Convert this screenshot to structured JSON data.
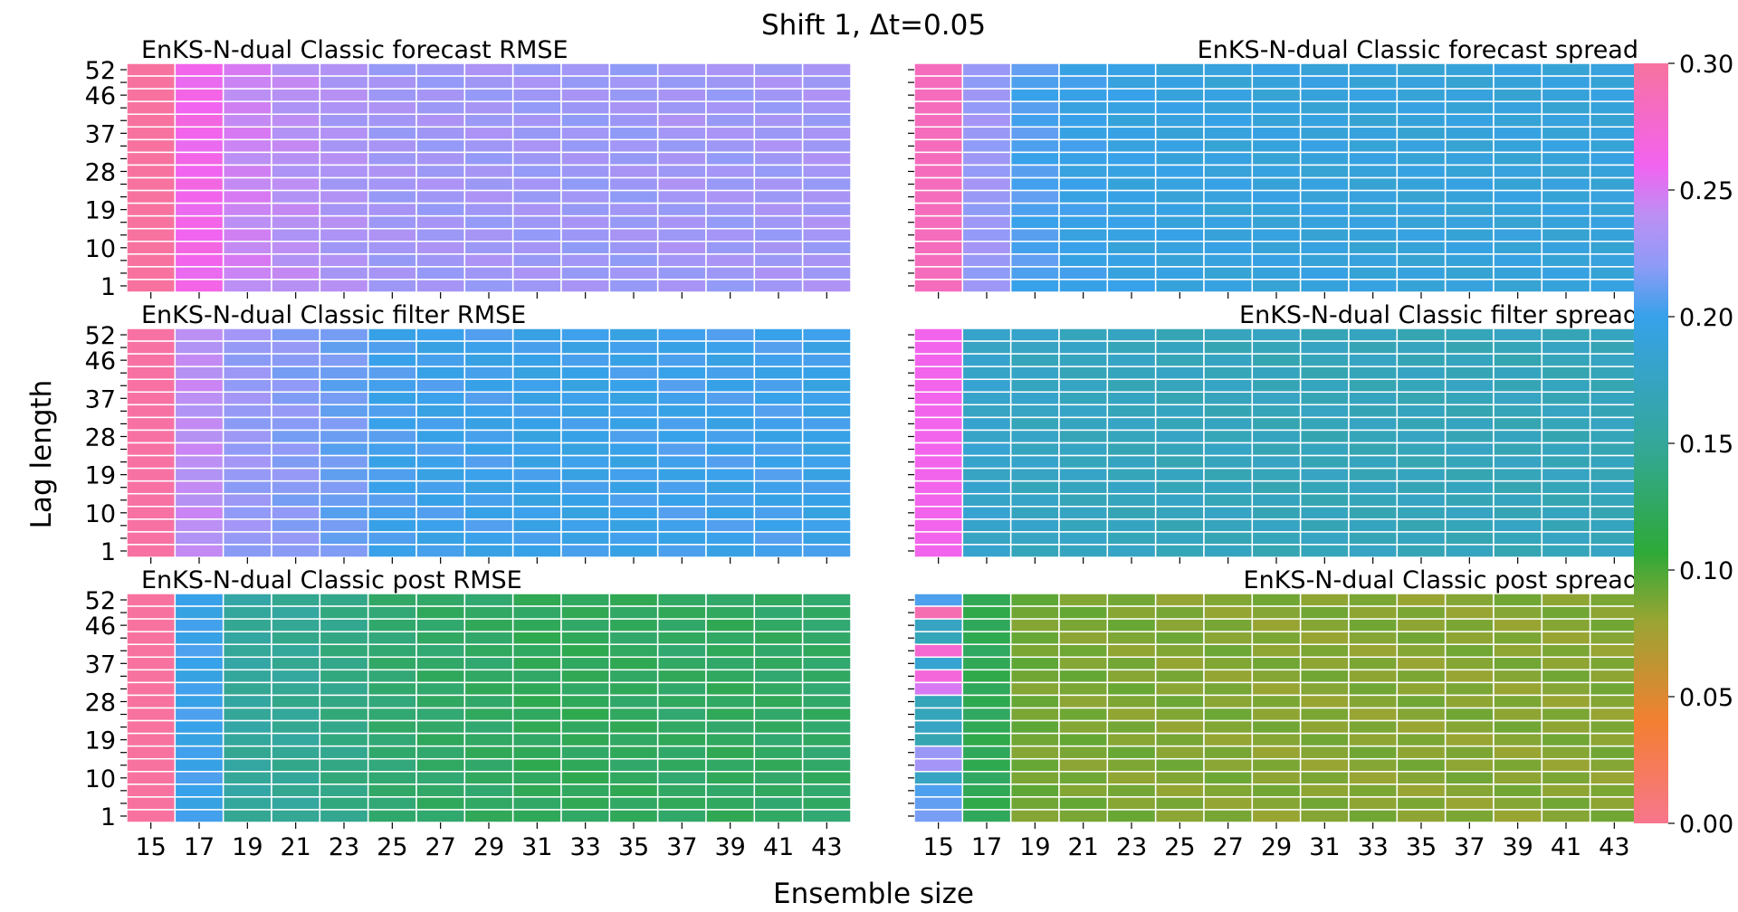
{
  "figure": {
    "title": "Shift 1, Δt=0.05",
    "xlabel": "Ensemble size",
    "ylabel": "Lag length"
  },
  "colorbar": {
    "min": 0.0,
    "max": 0.3,
    "ticks": [
      "0.00",
      "0.05",
      "0.10",
      "0.15",
      "0.20",
      "0.25",
      "0.30"
    ],
    "colormap": [
      [
        0.0,
        "#f8768d"
      ],
      [
        0.04,
        "#f37f32"
      ],
      [
        0.08,
        "#99a533"
      ],
      [
        0.107,
        "#2ea938"
      ],
      [
        0.15,
        "#34a79a"
      ],
      [
        0.2,
        "#37a1ea"
      ],
      [
        0.22,
        "#8e9bf7"
      ],
      [
        0.24,
        "#bc8ff4"
      ],
      [
        0.26,
        "#f263ef"
      ],
      [
        0.3,
        "#f7729e"
      ]
    ]
  },
  "chart_data": [
    {
      "type": "heatmap",
      "title": "EnKS-N-dual Classic forecast RMSE",
      "x": [
        15,
        17,
        19,
        21,
        23,
        25,
        27,
        29,
        31,
        33,
        35,
        37,
        39,
        41,
        43
      ],
      "y": [
        52,
        49,
        46,
        43,
        40,
        37,
        34,
        31,
        28,
        25,
        22,
        19,
        16,
        13,
        10,
        7,
        4,
        1
      ],
      "xticks": [
        "15",
        "17",
        "19",
        "21",
        "23",
        "25",
        "27",
        "29",
        "31",
        "33",
        "35",
        "37",
        "39",
        "41",
        "43"
      ],
      "yticks": [
        "52",
        "46",
        "37",
        "28",
        "19",
        "10",
        "1"
      ],
      "column_values": [
        0.3,
        0.262,
        0.245,
        0.238,
        0.233,
        0.229,
        0.228,
        0.228,
        0.227,
        0.226,
        0.226,
        0.229,
        0.227,
        0.228,
        0.229
      ]
    },
    {
      "type": "heatmap",
      "title": "EnKS-N-dual Classic forecast spread",
      "x": [
        15,
        17,
        19,
        21,
        23,
        25,
        27,
        29,
        31,
        33,
        35,
        37,
        39,
        41,
        43
      ],
      "y": [
        52,
        49,
        46,
        43,
        40,
        37,
        34,
        31,
        28,
        25,
        22,
        19,
        16,
        13,
        10,
        7,
        4,
        1
      ],
      "xticks": [
        "15",
        "17",
        "19",
        "21",
        "23",
        "25",
        "27",
        "29",
        "31",
        "33",
        "35",
        "37",
        "39",
        "41",
        "43"
      ],
      "yticks": [],
      "column_values": [
        0.285,
        0.225,
        0.205,
        0.198,
        0.195,
        0.193,
        0.192,
        0.191,
        0.191,
        0.19,
        0.19,
        0.19,
        0.19,
        0.19,
        0.19
      ]
    },
    {
      "type": "heatmap",
      "title": "EnKS-N-dual Classic filter RMSE",
      "x": [
        15,
        17,
        19,
        21,
        23,
        25,
        27,
        29,
        31,
        33,
        35,
        37,
        39,
        41,
        43
      ],
      "y": [
        52,
        49,
        46,
        43,
        40,
        37,
        34,
        31,
        28,
        25,
        22,
        19,
        16,
        13,
        10,
        7,
        4,
        1
      ],
      "xticks": [
        "15",
        "17",
        "19",
        "21",
        "23",
        "25",
        "27",
        "29",
        "31",
        "33",
        "35",
        "37",
        "39",
        "41",
        "43"
      ],
      "yticks": [
        "52",
        "46",
        "37",
        "28",
        "19",
        "10",
        "1"
      ],
      "column_values": [
        0.298,
        0.24,
        0.224,
        0.219,
        0.212,
        0.203,
        0.201,
        0.201,
        0.199,
        0.199,
        0.2,
        0.202,
        0.201,
        0.202,
        0.199
      ]
    },
    {
      "type": "heatmap",
      "title": "EnKS-N-dual Classic filter spread",
      "x": [
        15,
        17,
        19,
        21,
        23,
        25,
        27,
        29,
        31,
        33,
        35,
        37,
        39,
        41,
        43
      ],
      "y": [
        52,
        49,
        46,
        43,
        40,
        37,
        34,
        31,
        28,
        25,
        22,
        19,
        16,
        13,
        10,
        7,
        4,
        1
      ],
      "xticks": [
        "15",
        "17",
        "19",
        "21",
        "23",
        "25",
        "27",
        "29",
        "31",
        "33",
        "35",
        "37",
        "39",
        "41",
        "43"
      ],
      "yticks": [],
      "column_values": [
        0.262,
        0.18,
        0.175,
        0.173,
        0.172,
        0.171,
        0.171,
        0.17,
        0.17,
        0.17,
        0.17,
        0.17,
        0.17,
        0.17,
        0.17
      ]
    },
    {
      "type": "heatmap",
      "title": "EnKS-N-dual Classic post RMSE",
      "x": [
        15,
        17,
        19,
        21,
        23,
        25,
        27,
        29,
        31,
        33,
        35,
        37,
        39,
        41,
        43
      ],
      "y": [
        52,
        49,
        46,
        43,
        40,
        37,
        34,
        31,
        28,
        25,
        22,
        19,
        16,
        13,
        10,
        7,
        4,
        1
      ],
      "xticks": [
        "15",
        "17",
        "19",
        "21",
        "23",
        "25",
        "27",
        "29",
        "31",
        "33",
        "35",
        "37",
        "39",
        "41",
        "43"
      ],
      "yticks": [
        "52",
        "46",
        "37",
        "28",
        "19",
        "10",
        "1"
      ],
      "column_values": [
        0.3,
        0.2,
        0.152,
        0.148,
        0.14,
        0.132,
        0.128,
        0.126,
        0.122,
        0.122,
        0.124,
        0.126,
        0.124,
        0.126,
        0.128
      ]
    },
    {
      "type": "heatmap",
      "title": "EnKS-N-dual Classic post spread",
      "x": [
        15,
        17,
        19,
        21,
        23,
        25,
        27,
        29,
        31,
        33,
        35,
        37,
        39,
        41,
        43
      ],
      "y": [
        52,
        49,
        46,
        43,
        40,
        37,
        34,
        31,
        28,
        25,
        22,
        19,
        16,
        13,
        10,
        7,
        4,
        1
      ],
      "xticks": [
        "15",
        "17",
        "19",
        "21",
        "23",
        "25",
        "27",
        "29",
        "31",
        "33",
        "35",
        "37",
        "39",
        "41",
        "43"
      ],
      "yticks": [],
      "column_values": [
        0.19,
        0.12,
        0.09,
        0.088,
        0.087,
        0.086,
        0.086,
        0.085,
        0.085,
        0.085,
        0.085,
        0.085,
        0.085,
        0.085,
        0.085
      ],
      "first_column": [
        0.205,
        0.29,
        0.175,
        0.17,
        0.275,
        0.185,
        0.27,
        0.25,
        0.17,
        0.17,
        0.175,
        0.165,
        0.225,
        0.23,
        0.175,
        0.205,
        0.21,
        0.215
      ]
    }
  ]
}
